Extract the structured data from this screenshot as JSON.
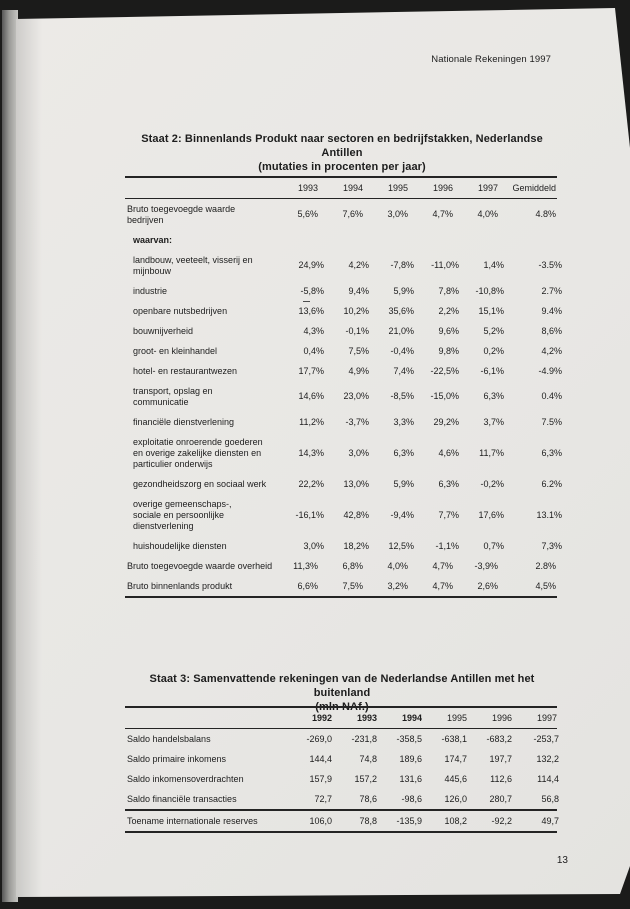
{
  "page": {
    "header_right": "Nationale Rekeningen 1997",
    "page_number": "13",
    "colors": {
      "backdrop": "#1b1b1a",
      "paper": "#e8e7e4",
      "ink": "#1d1d1d",
      "gutter_gray": "#9a9a97"
    }
  },
  "staat2": {
    "title_line1": "Staat 2: Binnenlands Produkt naar sectoren en bedrijfstakken, Nederlandse Antillen",
    "title_line2": "(mutaties in procenten per jaar)",
    "columns": [
      {
        "label": "1993",
        "bold": false,
        "wide": false
      },
      {
        "label": "1994",
        "bold": false,
        "wide": false
      },
      {
        "label": "1995",
        "bold": false,
        "wide": false
      },
      {
        "label": "1996",
        "bold": false,
        "wide": false
      },
      {
        "label": "1997",
        "bold": false,
        "wide": false
      },
      {
        "label": "Gemiddeld",
        "bold": false,
        "wide": true
      }
    ],
    "rows": [
      {
        "label": "Bruto toegevoegde waarde\nbedrijven",
        "values": [
          "5,6%",
          "7,6%",
          "3,0%",
          "4,7%",
          "4,0%",
          "4.8%"
        ],
        "indent": false,
        "bold": false,
        "rule_below": false
      },
      {
        "label": "waarvan:",
        "values": [
          "",
          "",
          "",
          "",
          "",
          ""
        ],
        "indent": true,
        "bold": true,
        "rule_below": false
      },
      {
        "label": "landbouw, veeteelt, visserij en\nmijnbouw",
        "values": [
          "24,9%",
          "4,2%",
          "-7,8%",
          "-11,0%",
          "1,4%",
          "-3.5%"
        ],
        "indent": true,
        "bold": false,
        "rule_below": false
      },
      {
        "label": "industrie",
        "values": [
          "-5,8%",
          "9,4%",
          "5,9%",
          "7,8%",
          "-10,8%",
          "2.7%"
        ],
        "indent": true,
        "bold": false,
        "rule_below": false
      },
      {
        "label": "openbare nutsbedrijven",
        "values": [
          "13,6%",
          "10,2%",
          "35,6%",
          "2,2%",
          "15,1%",
          "9.4%"
        ],
        "indent": true,
        "bold": false,
        "rule_below": false
      },
      {
        "label": "bouwnijverheid",
        "values": [
          "4,3%",
          "-0,1%",
          "21,0%",
          "9,6%",
          "5,2%",
          "8,6%"
        ],
        "indent": true,
        "bold": false,
        "rule_below": false
      },
      {
        "label": "groot- en kleinhandel",
        "values": [
          "0,4%",
          "7,5%",
          "-0,4%",
          "9,8%",
          "0,2%",
          "4,2%"
        ],
        "indent": true,
        "bold": false,
        "rule_below": false
      },
      {
        "label": "hotel- en restaurantwezen",
        "values": [
          "17,7%",
          "4,9%",
          "7,4%",
          "-22,5%",
          "-6,1%",
          "-4.9%"
        ],
        "indent": true,
        "bold": false,
        "rule_below": false
      },
      {
        "label": "transport, opslag en\ncommunicatie",
        "values": [
          "14,6%",
          "23,0%",
          "-8,5%",
          "-15,0%",
          "6,3%",
          "0.4%"
        ],
        "indent": true,
        "bold": false,
        "rule_below": false
      },
      {
        "label": "financiële dienstverlening",
        "values": [
          "11,2%",
          "-3,7%",
          "3,3%",
          "29,2%",
          "3,7%",
          "7.5%"
        ],
        "indent": true,
        "bold": false,
        "rule_below": false
      },
      {
        "label": "exploitatie onroerende goederen\nen overige zakelijke diensten en\nparticulier onderwijs",
        "values": [
          "14,3%",
          "3,0%",
          "6,3%",
          "4,6%",
          "11,7%",
          "6,3%"
        ],
        "indent": true,
        "bold": false,
        "rule_below": false
      },
      {
        "label": "gezondheidszorg en sociaal werk",
        "values": [
          "22,2%",
          "13,0%",
          "5,9%",
          "6,3%",
          "-0,2%",
          "6.2%"
        ],
        "indent": true,
        "bold": false,
        "rule_below": false
      },
      {
        "label": "overige gemeenschaps-,\nsociale en persoonlijke\ndienstverlening",
        "values": [
          "-16,1%",
          "42,8%",
          "-9,4%",
          "7,7%",
          "17,6%",
          "13.1%"
        ],
        "indent": true,
        "bold": false,
        "rule_below": false
      },
      {
        "label": "huishoudelijke diensten",
        "values": [
          "3,0%",
          "18,2%",
          "12,5%",
          "-1,1%",
          "0,7%",
          "7,3%"
        ],
        "indent": true,
        "bold": false,
        "rule_below": false
      },
      {
        "label": "Bruto toegevoegde waarde overheid",
        "values": [
          "11,3%",
          "6,8%",
          "4,0%",
          "4,7%",
          "-3,9%",
          "2.8%"
        ],
        "indent": false,
        "bold": false,
        "rule_below": false
      },
      {
        "label": "Bruto binnenlands produkt",
        "values": [
          "6,6%",
          "7,5%",
          "3,2%",
          "4,7%",
          "2,6%",
          "4,5%"
        ],
        "indent": false,
        "bold": false,
        "rule_below": false
      }
    ]
  },
  "staat3": {
    "title_line1": "Staat 3: Samenvattende rekeningen van de Nederlandse Antillen met het buitenland",
    "title_line2": "(mln NAf.)",
    "columns": [
      {
        "label": "1992",
        "bold": true,
        "wide": false
      },
      {
        "label": "1993",
        "bold": true,
        "wide": false
      },
      {
        "label": "1994",
        "bold": true,
        "wide": false
      },
      {
        "label": "1995",
        "bold": false,
        "wide": false
      },
      {
        "label": "1996",
        "bold": false,
        "wide": false
      },
      {
        "label": "1997",
        "bold": false,
        "wide": false
      }
    ],
    "rows": [
      {
        "label": "Saldo handelsbalans",
        "values": [
          "-269,0",
          "-231,8",
          "-358,5",
          "-638,1",
          "-683,2",
          "-253,7"
        ],
        "indent": false,
        "bold": false,
        "rule_below": false
      },
      {
        "label": "Saldo primaire inkomens",
        "values": [
          "144,4",
          "74,8",
          "189,6",
          "174,7",
          "197,7",
          "132,2"
        ],
        "indent": false,
        "bold": false,
        "rule_below": false
      },
      {
        "label": "Saldo inkomensoverdrachten",
        "values": [
          "157,9",
          "157,2",
          "131,6",
          "445,6",
          "112,6",
          "114,4"
        ],
        "indent": false,
        "bold": false,
        "rule_below": false
      },
      {
        "label": "Saldo financiële transacties",
        "values": [
          "72,7",
          "78,6",
          "-98,6",
          "126,0",
          "280,7",
          "56,8"
        ],
        "indent": false,
        "bold": false,
        "rule_below": true
      },
      {
        "label": "Toename internationale reserves",
        "values": [
          "106,0",
          "78,8",
          "-135,9",
          "108,2",
          "-92,2",
          "49,7"
        ],
        "indent": false,
        "bold": false,
        "rule_below": false
      }
    ]
  }
}
